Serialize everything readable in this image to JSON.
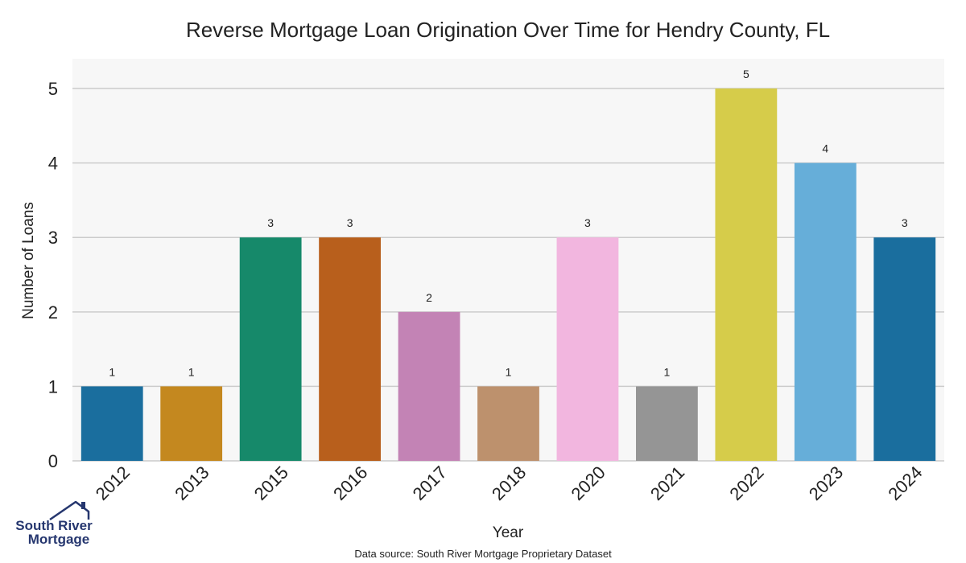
{
  "chart_data": {
    "type": "bar",
    "title": "Reverse Mortgage Loan Origination Over Time for Hendry County, FL",
    "xlabel": "Year",
    "ylabel": "Number of Loans",
    "categories": [
      "2012",
      "2013",
      "2015",
      "2016",
      "2017",
      "2018",
      "2020",
      "2021",
      "2022",
      "2023",
      "2024"
    ],
    "values": [
      1,
      1,
      3,
      3,
      2,
      1,
      3,
      1,
      5,
      4,
      3
    ],
    "colors": [
      "#1a6e9e",
      "#c4881f",
      "#16896a",
      "#b85f1c",
      "#c383b5",
      "#bd916d",
      "#f2b6df",
      "#959595",
      "#d6cc4a",
      "#66aed9",
      "#1a6e9e"
    ],
    "yticks": [
      0,
      1,
      2,
      3,
      4,
      5
    ],
    "ylim": [
      0,
      5.4
    ],
    "grid": true,
    "plot_background": "#f7f7f7",
    "grid_color": "#cccccc",
    "source_note": "Data source: South River Mortgage Proprietary Dataset",
    "logo": {
      "line1": "South River",
      "line2": "Mortgage",
      "color": "#26376f"
    }
  }
}
